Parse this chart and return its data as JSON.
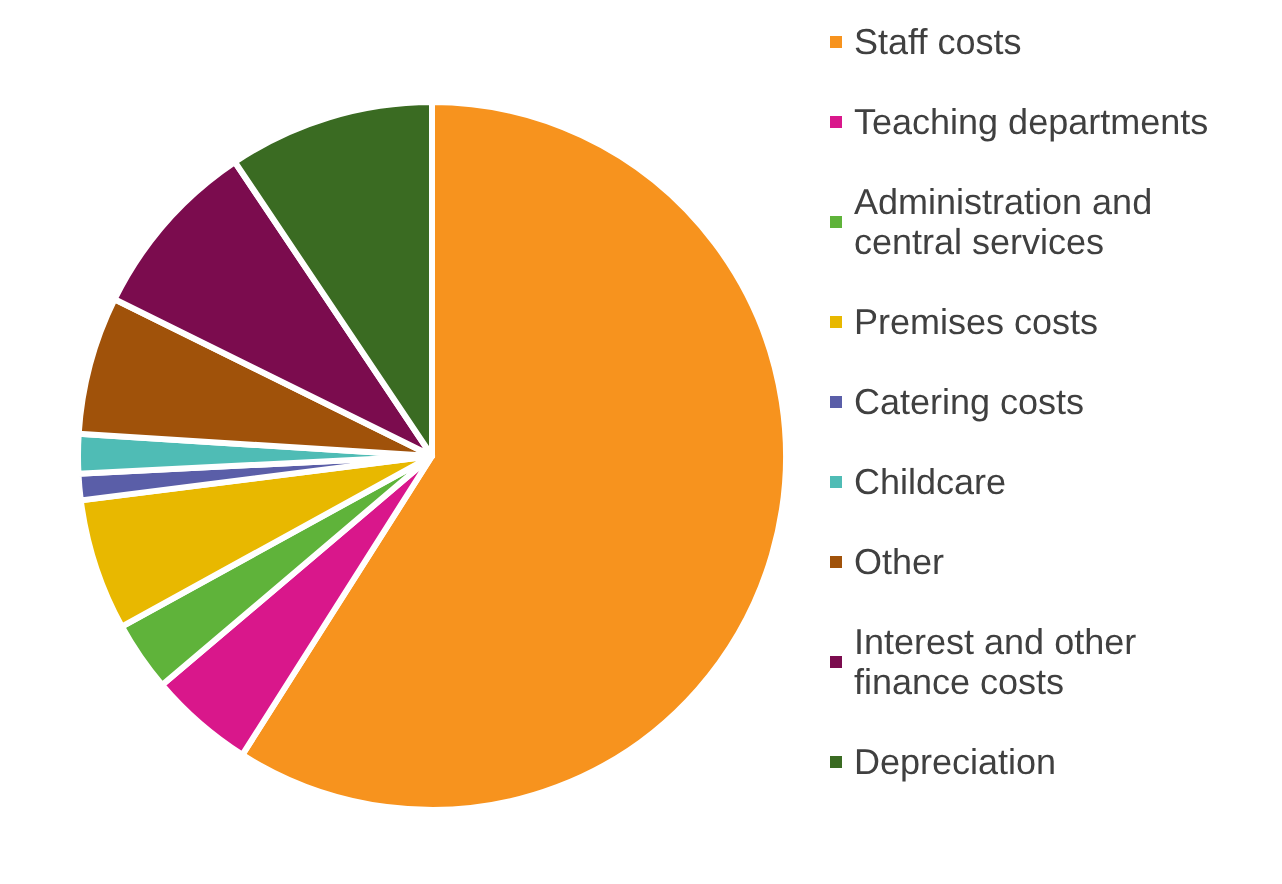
{
  "chart_data": {
    "type": "pie",
    "categories": [
      "Staff costs",
      "Teaching departments",
      "Administration and central services",
      "Premises costs",
      "Catering costs",
      "Childcare",
      "Other",
      "Interest and other finance costs",
      "Depreciation"
    ],
    "values": [
      59.0,
      4.8,
      3.2,
      6.0,
      1.2,
      1.8,
      6.3,
      8.3,
      9.4
    ],
    "colors": [
      "#f7931e",
      "#d9178b",
      "#5fb33a",
      "#e8b800",
      "#5a5ea8",
      "#4fbcb5",
      "#a0520a",
      "#7b0c4e",
      "#3a6b22"
    ],
    "legend": "right"
  }
}
